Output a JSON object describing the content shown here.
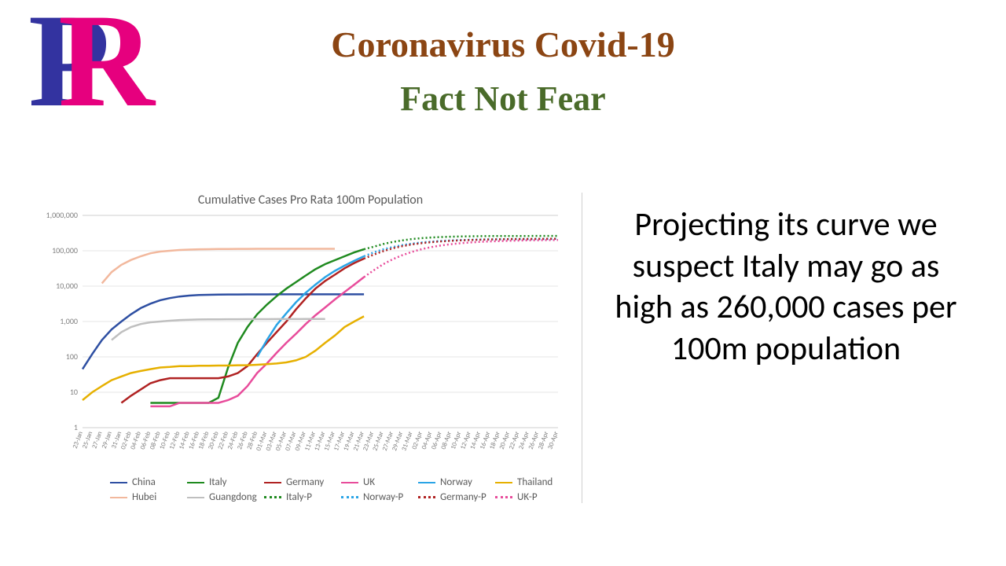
{
  "logo": {
    "p_color": "#3333a0",
    "r_color": "#e6007e"
  },
  "title": {
    "text": "Coronavirus Covid-19",
    "color": "#8b4513",
    "fontsize": 46
  },
  "subtitle": {
    "text": "Fact Not Fear",
    "color": "#4a6b2a",
    "fontsize": 44
  },
  "right_text": {
    "text": "Projecting its curve we suspect Italy may go as high as 260,000 cases per 100m population",
    "fontsize": 42
  },
  "chart": {
    "type": "line",
    "title": "Cumulative Cases Pro Rata 100m Population",
    "title_fontsize": 16,
    "title_color": "#595959",
    "background_color": "#ffffff",
    "grid_color": "#e6e6e6",
    "scale": "log",
    "ylim": [
      1,
      1000000
    ],
    "ytick_labels": [
      "1",
      "10",
      "100",
      "1,000",
      "10,000",
      "100,000",
      "1,000,000"
    ],
    "ytick_values": [
      1,
      10,
      100,
      1000,
      10000,
      100000,
      1000000
    ],
    "tick_label_color": "#808080",
    "tick_label_fontsize": 10,
    "x_labels": [
      "23-Jan",
      "25-Jan",
      "27-Jan",
      "29-Jan",
      "31-Jan",
      "02-Feb",
      "04-Feb",
      "06-Feb",
      "08-Feb",
      "10-Feb",
      "12-Feb",
      "14-Feb",
      "16-Feb",
      "18-Feb",
      "20-Feb",
      "22-Feb",
      "24-Feb",
      "26-Feb",
      "28-Feb",
      "01-Mar",
      "03-Mar",
      "05-Mar",
      "07-Mar",
      "09-Mar",
      "11-Mar",
      "13-Mar",
      "15-Mar",
      "17-Mar",
      "19-Mar",
      "21-Mar",
      "23-Mar",
      "25-Mar",
      "27-Mar",
      "29-Mar",
      "31-Mar",
      "02-Apr",
      "04-Apr",
      "06-Apr",
      "08-Apr",
      "10-Apr",
      "12-Apr",
      "14-Apr",
      "16-Apr",
      "18-Apr",
      "20-Apr",
      "22-Apr",
      "24-Apr",
      "26-Apr",
      "28-Apr",
      "30-Apr"
    ],
    "series": [
      {
        "name": "China",
        "color": "#2e4fa2",
        "dash": false,
        "values": [
          45,
          120,
          300,
          600,
          1000,
          1600,
          2400,
          3200,
          4000,
          4600,
          5100,
          5400,
          5600,
          5700,
          5750,
          5800,
          5820,
          5840,
          5850,
          5855,
          5860,
          5865,
          5870,
          5875,
          5878,
          5880,
          5882,
          5884,
          5886,
          5888
        ],
        "width": 2.5
      },
      {
        "name": "Italy",
        "color": "#1f8a1f",
        "dash": false,
        "values": [
          null,
          null,
          null,
          null,
          null,
          null,
          null,
          5,
          5,
          5,
          5,
          5,
          5,
          5,
          7,
          50,
          250,
          700,
          1600,
          3000,
          5200,
          8500,
          13000,
          20000,
          30000,
          42000,
          54000,
          70000,
          90000,
          110000
        ],
        "width": 2.5
      },
      {
        "name": "Germany",
        "color": "#b02222",
        "dash": false,
        "values": [
          null,
          null,
          null,
          null,
          5,
          8,
          12,
          18,
          22,
          25,
          25,
          25,
          25,
          25,
          25,
          28,
          35,
          55,
          120,
          250,
          500,
          1000,
          2200,
          4500,
          8500,
          14000,
          21000,
          32000,
          45000,
          60000
        ],
        "width": 2.5
      },
      {
        "name": "UK",
        "color": "#e84c9b",
        "dash": false,
        "values": [
          null,
          null,
          null,
          null,
          null,
          null,
          null,
          4,
          4,
          4,
          5,
          5,
          5,
          5,
          5,
          6,
          8,
          15,
          35,
          65,
          130,
          250,
          450,
          850,
          1500,
          2500,
          4200,
          6800,
          11000,
          18000
        ],
        "width": 2.5
      },
      {
        "name": "Norway",
        "color": "#2aa4e6",
        "dash": false,
        "values": [
          null,
          null,
          null,
          null,
          null,
          null,
          null,
          null,
          null,
          null,
          null,
          null,
          null,
          null,
          null,
          null,
          null,
          null,
          100,
          300,
          800,
          1700,
          3500,
          6500,
          11000,
          18000,
          27000,
          38000,
          52000,
          70000
        ],
        "width": 2.5
      },
      {
        "name": "Thailand",
        "color": "#e6b000",
        "dash": false,
        "values": [
          6,
          10,
          15,
          22,
          28,
          35,
          40,
          45,
          50,
          52,
          55,
          55,
          56,
          56,
          57,
          57,
          58,
          58,
          60,
          62,
          65,
          70,
          80,
          100,
          150,
          250,
          400,
          700,
          1000,
          1400
        ],
        "width": 2.5
      },
      {
        "name": "Hubei",
        "color": "#f2b89d",
        "dash": false,
        "values": [
          null,
          null,
          12000,
          25000,
          40000,
          55000,
          70000,
          85000,
          95000,
          100000,
          105000,
          108000,
          110000,
          111000,
          112000,
          112500,
          113000,
          113200,
          113400,
          113500,
          113550,
          113600,
          113650,
          113700,
          113720,
          113740,
          113760
        ],
        "width": 2.5
      },
      {
        "name": "Guangdong",
        "color": "#bfbfbf",
        "dash": false,
        "values": [
          null,
          null,
          null,
          300,
          500,
          700,
          850,
          950,
          1000,
          1050,
          1100,
          1120,
          1140,
          1150,
          1155,
          1160,
          1162,
          1164,
          1166,
          1168,
          1170,
          1172,
          1174,
          1176,
          1178,
          1180
        ],
        "width": 2.5
      },
      {
        "name": "Italy-P",
        "color": "#1f8a1f",
        "dash": true,
        "values": [
          null,
          null,
          null,
          null,
          null,
          null,
          null,
          null,
          null,
          null,
          null,
          null,
          null,
          null,
          null,
          null,
          null,
          null,
          null,
          null,
          null,
          null,
          null,
          null,
          null,
          null,
          null,
          null,
          null,
          110000,
          130000,
          155000,
          178000,
          198000,
          215000,
          228000,
          238000,
          245000,
          250000,
          254000,
          257000,
          259000,
          260000,
          261000,
          261500,
          262000,
          262200,
          262400,
          262500,
          262600
        ],
        "width": 2.5
      },
      {
        "name": "Norway-P",
        "color": "#2aa4e6",
        "dash": true,
        "values": [
          null,
          null,
          null,
          null,
          null,
          null,
          null,
          null,
          null,
          null,
          null,
          null,
          null,
          null,
          null,
          null,
          null,
          null,
          null,
          null,
          null,
          null,
          null,
          null,
          null,
          null,
          null,
          null,
          null,
          70000,
          90000,
          110000,
          128000,
          145000,
          160000,
          172000,
          182000,
          190000,
          196000,
          201000,
          205000,
          208000,
          210000,
          211500,
          212800,
          213800,
          214600,
          215200,
          215600,
          216000
        ],
        "width": 2.5
      },
      {
        "name": "Germany-P",
        "color": "#b02222",
        "dash": true,
        "values": [
          null,
          null,
          null,
          null,
          null,
          null,
          null,
          null,
          null,
          null,
          null,
          null,
          null,
          null,
          null,
          null,
          null,
          null,
          null,
          null,
          null,
          null,
          null,
          null,
          null,
          null,
          null,
          null,
          null,
          60000,
          78000,
          98000,
          118000,
          136000,
          152000,
          165000,
          176000,
          185000,
          192000,
          198000,
          202000,
          206000,
          209000,
          211000,
          212800,
          214200,
          215400,
          216400,
          217200,
          218000
        ],
        "width": 2.5
      },
      {
        "name": "UK-P",
        "color": "#e84c9b",
        "dash": true,
        "values": [
          null,
          null,
          null,
          null,
          null,
          null,
          null,
          null,
          null,
          null,
          null,
          null,
          null,
          null,
          null,
          null,
          null,
          null,
          null,
          null,
          null,
          null,
          null,
          null,
          null,
          null,
          null,
          null,
          null,
          18000,
          28000,
          42000,
          58000,
          76000,
          94000,
          112000,
          128000,
          142000,
          154000,
          164000,
          172000,
          179000,
          184000,
          188000,
          191500,
          194500,
          197000,
          199000,
          200500,
          202000
        ],
        "width": 2.5
      }
    ],
    "legend": {
      "rows": [
        [
          "China",
          "Italy",
          "Germany",
          "UK",
          "Norway",
          "Thailand"
        ],
        [
          "Hubei",
          "Guangdong",
          "Italy-P",
          "Norway-P",
          "Germany-P",
          "UK-P"
        ]
      ]
    }
  }
}
